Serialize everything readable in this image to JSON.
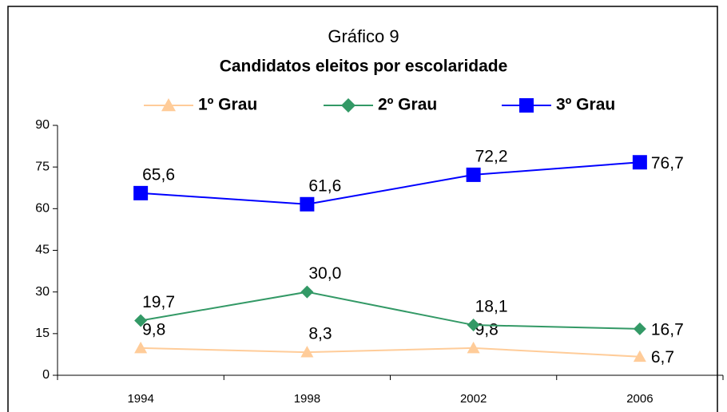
{
  "chart_data": {
    "type": "line",
    "title": "Gráfico 9",
    "subtitle": "Candidatos eleitos por escolaridade",
    "categories": [
      "1994",
      "1998",
      "2002",
      "2006"
    ],
    "series": [
      {
        "name": "1º Grau",
        "color": "#ffcc99",
        "marker": "triangle",
        "values": [
          9.8,
          8.3,
          9.8,
          6.7
        ],
        "value_labels": [
          "9,8",
          "8,3",
          "9,8",
          "6,7"
        ]
      },
      {
        "name": "2º Grau",
        "color": "#339966",
        "marker": "diamond",
        "values": [
          19.7,
          30.0,
          18.1,
          16.7
        ],
        "value_labels": [
          "19,7",
          "30,0",
          "18,1",
          "16,7"
        ]
      },
      {
        "name": "3º Grau",
        "color": "#0000ff",
        "marker": "square",
        "values": [
          65.6,
          61.6,
          72.2,
          76.7
        ],
        "value_labels": [
          "65,6",
          "61,6",
          "72,2",
          "76,7"
        ]
      }
    ],
    "ylim": [
      0,
      90
    ],
    "yticks": [
      0,
      15,
      30,
      45,
      60,
      75,
      90
    ],
    "grid": false,
    "legend": "top"
  }
}
